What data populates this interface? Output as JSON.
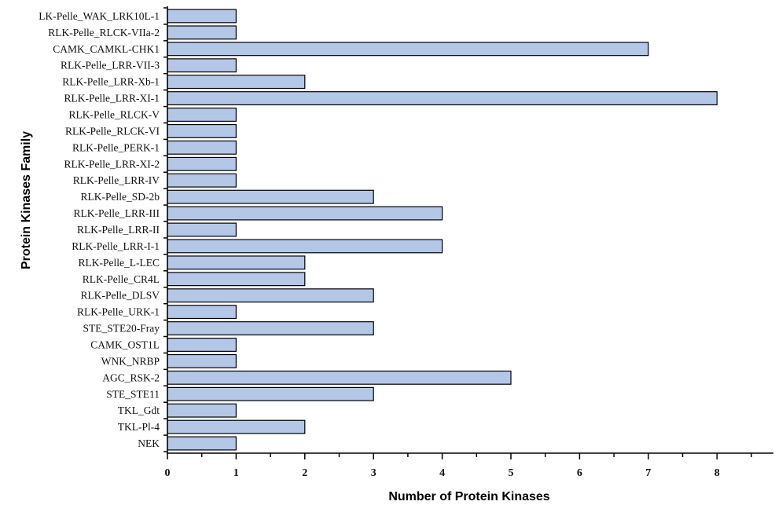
{
  "chart_data": {
    "type": "bar",
    "orientation": "horizontal",
    "categories": [
      "LK-Pelle_WAK_LRK10L-1",
      "RLK-Pelle_RLCK-VIIa-2",
      "CAMK_CAMKL-CHK1",
      "RLK-Pelle_LRR-VII-3",
      "RLK-Pelle_LRR-Xb-1",
      "RLK-Pelle_LRR-XI-1",
      "RLK-Pelle_RLCK-V",
      "RLK-Pelle_RLCK-VI",
      "RLK-Pelle_PERK-1",
      "RLK-Pelle_LRR-XI-2",
      "RLK-Pelle_LRR-IV",
      "RLK-Pelle_SD-2b",
      "RLK-Pelle_LRR-III",
      "RLK-Pelle_LRR-II",
      "RLK-Pelle_LRR-I-1",
      "RLK-Pelle_L-LEC",
      "RLK-Pelle_CR4L",
      "RLK-Pelle_DLSV",
      "RLK-Pelle_URK-1",
      "STE_STE20-Fray",
      "CAMK_OST1L",
      "WNK_NRBP",
      "AGC_RSK-2",
      "STE_STE11",
      "TKL_Gdt",
      "TKL-Pl-4",
      "NEK"
    ],
    "values": [
      1,
      1,
      7,
      1,
      2,
      8,
      1,
      1,
      1,
      1,
      1,
      3,
      4,
      1,
      4,
      2,
      2,
      3,
      1,
      3,
      1,
      1,
      5,
      3,
      1,
      2,
      1
    ],
    "xlabel": "Number of Protein Kinases",
    "ylabel": "Protein Kinases Family",
    "xlim": [
      0,
      8.8
    ],
    "xticks": [
      "0",
      "1",
      "2",
      "3",
      "4",
      "5",
      "6",
      "7",
      "8"
    ],
    "bar_color": "#b4c7e7",
    "bar_edge_color": "#000000",
    "grid": false
  }
}
